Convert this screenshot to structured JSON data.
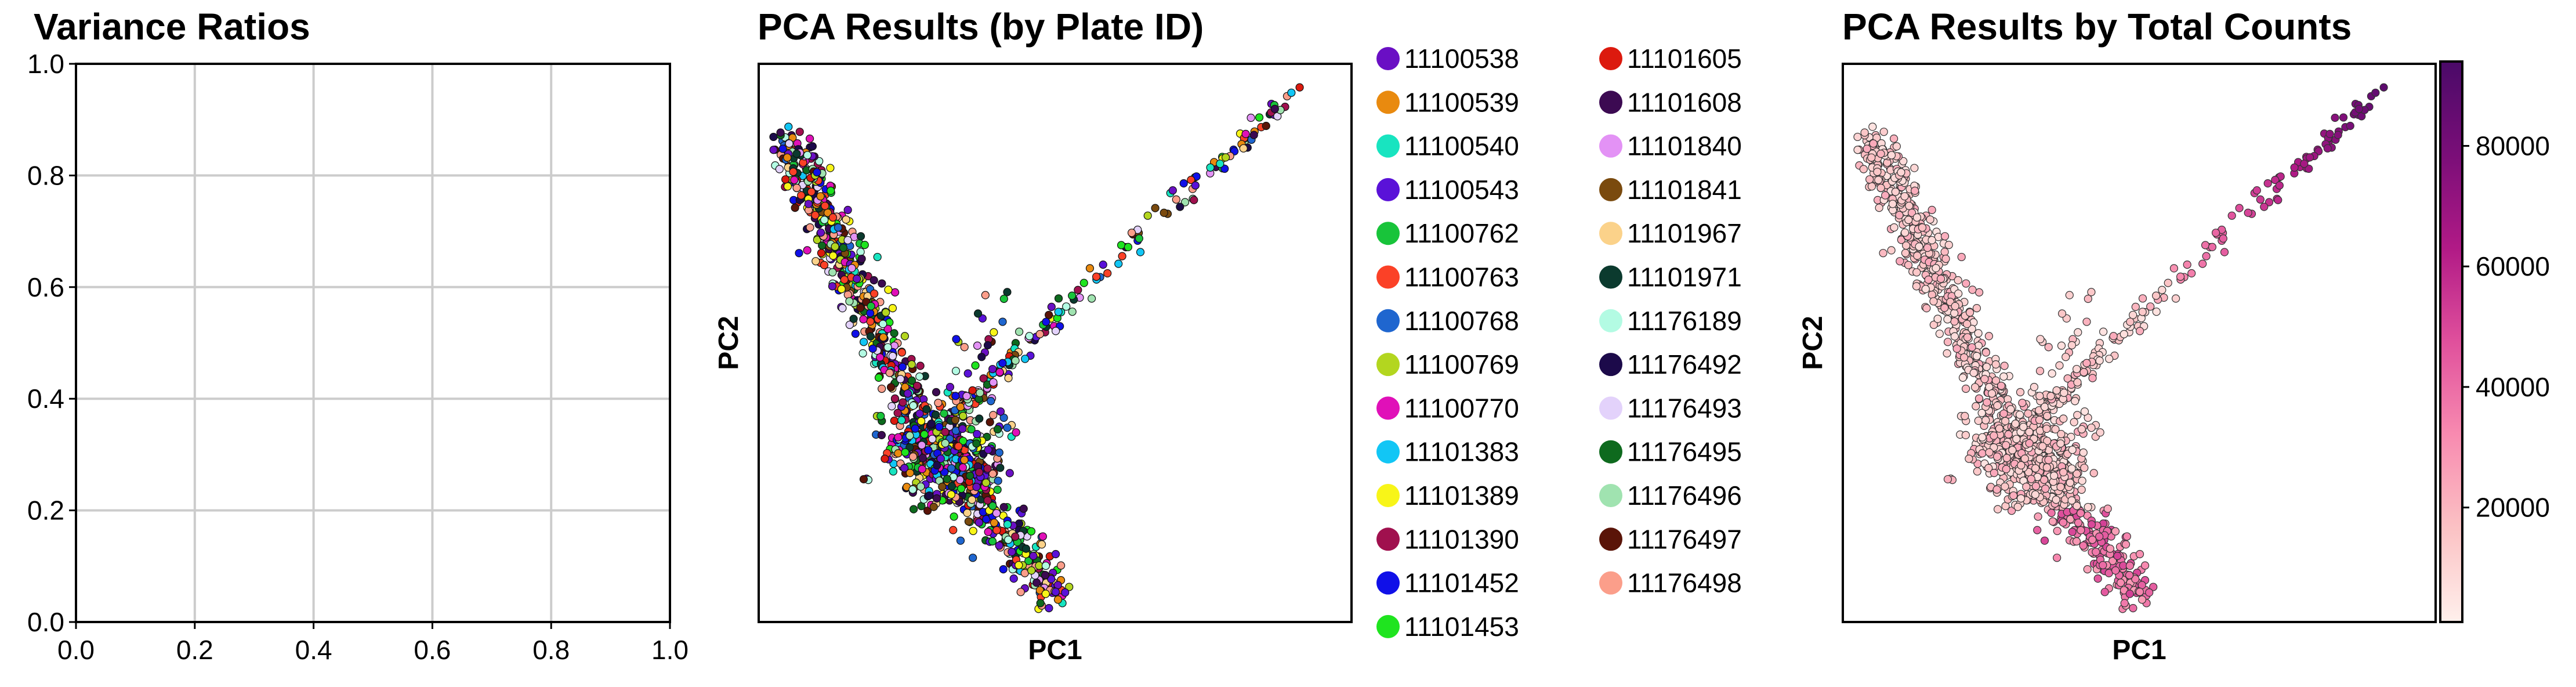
{
  "chart_data": [
    {
      "type": "line",
      "title": "Variance Ratios",
      "xlabel": "",
      "ylabel": "",
      "xlim": [
        0.0,
        1.0
      ],
      "ylim": [
        0.0,
        1.0
      ],
      "x_ticks": [
        "0.0",
        "0.2",
        "0.4",
        "0.6",
        "0.8",
        "1.0"
      ],
      "y_ticks": [
        "0.0",
        "0.2",
        "0.4",
        "0.6",
        "0.8",
        "1.0"
      ],
      "grid": true,
      "series": []
    },
    {
      "type": "scatter",
      "title": "PCA Results (by Plate ID)",
      "xlabel": "PC1",
      "ylabel": "PC2",
      "grid": false,
      "legend_placement": "outside right",
      "legend": [
        {
          "label": "11100538",
          "color": "#6a0fc4"
        },
        {
          "label": "11100539",
          "color": "#e98a0f"
        },
        {
          "label": "11100540",
          "color": "#18e4c0"
        },
        {
          "label": "11100543",
          "color": "#5a12d8"
        },
        {
          "label": "11100762",
          "color": "#18c43a"
        },
        {
          "label": "11100763",
          "color": "#fb4127"
        },
        {
          "label": "11100768",
          "color": "#1f66cf"
        },
        {
          "label": "11100769",
          "color": "#b3d61f"
        },
        {
          "label": "11100770",
          "color": "#e010b8"
        },
        {
          "label": "11101383",
          "color": "#12c6f5"
        },
        {
          "label": "11101389",
          "color": "#f8f518"
        },
        {
          "label": "11101390",
          "color": "#a0104e"
        },
        {
          "label": "11101452",
          "color": "#1010e8"
        },
        {
          "label": "11101453",
          "color": "#1fe41f"
        },
        {
          "label": "11101605",
          "color": "#dc1a0e"
        },
        {
          "label": "11101608",
          "color": "#3c0a52"
        },
        {
          "label": "11101840",
          "color": "#e392f5"
        },
        {
          "label": "11101841",
          "color": "#7a4a0e"
        },
        {
          "label": "11101967",
          "color": "#fbd28a"
        },
        {
          "label": "11101971",
          "color": "#0b3a2e"
        },
        {
          "label": "11176189",
          "color": "#b3fbe3"
        },
        {
          "label": "11176492",
          "color": "#1c0a4a"
        },
        {
          "label": "11176493",
          "color": "#e3d2fb"
        },
        {
          "label": "11176495",
          "color": "#0e6a1e"
        },
        {
          "label": "11176496",
          "color": "#a0e3b0"
        },
        {
          "label": "11176497",
          "color": "#5a1408"
        },
        {
          "label": "11176498",
          "color": "#fb9e8a"
        }
      ]
    },
    {
      "type": "scatter",
      "title": "PCA Results by Total Counts",
      "xlabel": "PC1",
      "ylabel": "PC2",
      "grid": false,
      "colorbar": {
        "ticks": [
          "20000",
          "40000",
          "60000",
          "80000"
        ],
        "tick_values": [
          20000,
          40000,
          60000,
          80000
        ],
        "range": [
          1000,
          94000
        ],
        "colors": [
          "#fff0ec",
          "#fbc2c4",
          "#f88bb0",
          "#e0509c",
          "#b11a86",
          "#7a0e78",
          "#4a0a68"
        ]
      }
    }
  ]
}
